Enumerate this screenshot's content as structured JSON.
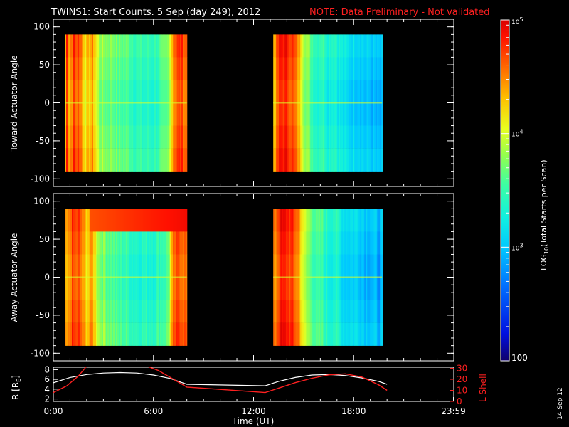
{
  "header": {
    "title": "TWINS1: Start Counts.  5 Sep (day 249), 2012",
    "note": "NOTE: Data Preliminary - Not validated"
  },
  "date_stamp": "14 Sep 12",
  "colors": {
    "background": "#000000",
    "axes": "#ffffff",
    "note": "#ff2020",
    "r_line": "#ffffff",
    "lshell_line": "#ff2020"
  },
  "chart_data": [
    {
      "type": "heatmap",
      "panel": "toward",
      "ylabel": "Toward Actuator Angle",
      "ylim": [
        -110,
        110
      ],
      "yticks": [
        "100",
        "50",
        "0",
        "-50",
        "-100"
      ],
      "xlim_hours": [
        0,
        24
      ],
      "data_gaps_hours": [
        [
          8.0,
          12.5
        ],
        [
          19.7,
          24
        ]
      ],
      "data_blocks_hours": [
        [
          0.0,
          8.0
        ],
        [
          12.5,
          19.7
        ]
      ],
      "angle_range": [
        -90,
        90
      ],
      "log_counts_profile_block1": [
        4.4,
        4.6,
        4.8,
        4.2,
        4.5,
        3.9,
        3.8,
        3.8,
        3.7,
        3.7,
        3.6,
        3.5,
        3.5,
        3.5,
        3.6,
        3.7,
        4.7,
        4.8,
        4.6
      ],
      "log_counts_profile_block2": [
        4.4,
        4.9,
        4.9,
        4.8,
        4.5,
        4.0,
        3.7,
        3.5,
        3.6,
        3.4,
        3.5,
        3.3,
        3.2,
        3.2,
        3.2,
        3.1,
        3.1,
        3.0,
        3.0
      ]
    },
    {
      "type": "heatmap",
      "panel": "away",
      "ylabel": "Away Actuator Angle",
      "ylim": [
        -110,
        110
      ],
      "yticks": [
        "100",
        "50",
        "0",
        "-50",
        "-100"
      ],
      "xlim_hours": [
        0,
        24
      ],
      "data_gaps_hours": [
        [
          8.0,
          12.5
        ],
        [
          19.7,
          24
        ]
      ],
      "data_blocks_hours": [
        [
          0.0,
          8.0
        ],
        [
          12.5,
          19.7
        ]
      ],
      "angle_range": [
        -90,
        90
      ],
      "log_counts_profile_block1": [
        4.4,
        4.6,
        4.8,
        4.3,
        4.5,
        3.9,
        3.8,
        3.7,
        3.6,
        3.6,
        3.5,
        3.5,
        3.5,
        3.5,
        3.6,
        3.7,
        4.7,
        4.8,
        4.6
      ],
      "log_counts_profile_block2": [
        4.5,
        4.9,
        4.9,
        4.8,
        4.6,
        4.0,
        3.8,
        3.6,
        3.6,
        3.4,
        3.5,
        3.3,
        3.2,
        3.2,
        3.2,
        3.1,
        3.1,
        3.0,
        3.0
      ]
    },
    {
      "type": "line",
      "panel": "orbit",
      "xlabel": "Time (UT)",
      "xticks": [
        "0:00",
        "6:00",
        "12:00",
        "18:00",
        "23:59"
      ],
      "ylabel_left": "R [R",
      "ylabel_left_sub": "E",
      "ylabel_left_end": "]",
      "yticks_left": [
        "8",
        "6",
        "4",
        "2"
      ],
      "ylim_left": [
        1.5,
        8.5
      ],
      "ylabel_right": "L Shell",
      "yticks_right": [
        "30",
        "20",
        "10",
        "0"
      ],
      "ylim_right": [
        0,
        31
      ],
      "series": [
        {
          "name": "R",
          "x": [
            0,
            1,
            2,
            3,
            4,
            5,
            6,
            7,
            8,
            12.7,
            13.5,
            14.5,
            15.5,
            16.5,
            17.5,
            18.5,
            19.5,
            20
          ],
          "y": [
            5.3,
            6.4,
            7.0,
            7.3,
            7.4,
            7.3,
            6.9,
            6.2,
            5.0,
            4.7,
            5.6,
            6.4,
            6.9,
            7.0,
            6.8,
            6.3,
            5.6,
            5.0
          ]
        },
        {
          "name": "L Shell",
          "x": [
            0,
            0.8,
            1.5,
            2.0,
            5.6,
            6.3,
            8.0,
            12.7,
            13.5,
            14.5,
            15.5,
            16.5,
            17.5,
            18.5,
            19.5,
            20
          ],
          "y": [
            8,
            14,
            23,
            32,
            32,
            28,
            13,
            8,
            12,
            17,
            21,
            24,
            25,
            22,
            15,
            10
          ]
        }
      ]
    }
  ],
  "colorbar": {
    "label_pre": "LOG",
    "label_sub": "10",
    "label_post": "(Total Starts per Scan)",
    "log_range": [
      2,
      5
    ],
    "ticks": [
      {
        "log": 5,
        "base": "10",
        "exp": "5"
      },
      {
        "log": 4,
        "base": "10",
        "exp": "4"
      },
      {
        "log": 3,
        "base": "10",
        "exp": "3"
      }
    ],
    "bottom_label": "100"
  }
}
